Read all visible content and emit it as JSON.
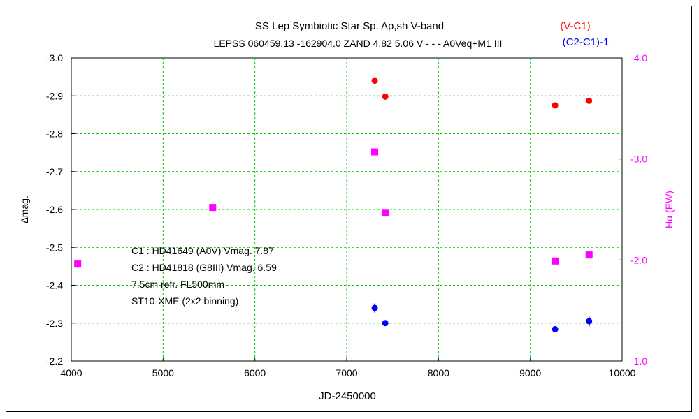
{
  "chart_data": {
    "type": "scatter",
    "title": "SS Lep    Symbiotic Star    Sp. Ap,sh     V-band",
    "subtitle": "LEPSS 060459.13 -162904.0 ZAND 4.82 5.06 V - - - A0Veq+M1 III",
    "xlabel": "JD-2450000",
    "ylabel": "∆mag.",
    "y2label": "Hα (EW)",
    "xlim": [
      4000,
      10000
    ],
    "ylim": [
      -3.0,
      -2.2
    ],
    "y2lim": [
      -4.0,
      -1.0
    ],
    "x_ticks": [
      "4000",
      "5000",
      "6000",
      "7000",
      "8000",
      "9000",
      "10000"
    ],
    "x_tick_values": [
      4000,
      5000,
      6000,
      7000,
      8000,
      9000,
      10000
    ],
    "y_ticks": [
      "-3.0",
      "-2.9",
      "-2.8",
      "-2.7",
      "-2.6",
      "-2.5",
      "-2.4",
      "-2.3",
      "-2.2"
    ],
    "y_tick_values": [
      -3.0,
      -2.9,
      -2.8,
      -2.7,
      -2.6,
      -2.5,
      -2.4,
      -2.3,
      -2.2
    ],
    "y2_ticks": [
      "-4.0",
      "-3.0",
      "-2.0",
      "-1.0"
    ],
    "y2_tick_values": [
      -4.0,
      -3.0,
      -2.0,
      -1.0
    ],
    "grid": true,
    "legend": [
      "(V-C1)",
      "(C2-C1)-1"
    ],
    "legend_placement": "top-right",
    "series": [
      {
        "name": "(V-C1)",
        "color": "#ff0000",
        "marker": "circle",
        "axis": "left",
        "x": [
          7305,
          7420,
          9270,
          9640
        ],
        "y": [
          -2.94,
          -2.898,
          -2.875,
          -2.887
        ],
        "err": [
          0.01,
          0.0,
          0.0,
          0.008
        ]
      },
      {
        "name": "(C2-C1)-1",
        "color": "#0000ff",
        "marker": "circle",
        "axis": "left",
        "x": [
          7305,
          7420,
          9270,
          9640
        ],
        "y": [
          -2.34,
          -2.3,
          -2.284,
          -2.305
        ],
        "err": [
          0.012,
          0.0,
          0.0,
          0.014
        ]
      },
      {
        "name": "Hα (EW)",
        "color": "#ff00ff",
        "marker": "square",
        "axis": "right",
        "x": [
          4070,
          5540,
          7305,
          7420,
          9270,
          9640
        ],
        "y": [
          -1.96,
          -2.52,
          -3.07,
          -2.47,
          -1.99,
          -2.05
        ]
      }
    ],
    "annotations": [
      "C1 : HD41649 (A0V) Vmag. 7.87",
      "C2 : HD41818 (G8III) Vmag. 6.59",
      "7.5cm refr. FL500mm",
      "ST10-XME (2x2 binning)"
    ]
  }
}
